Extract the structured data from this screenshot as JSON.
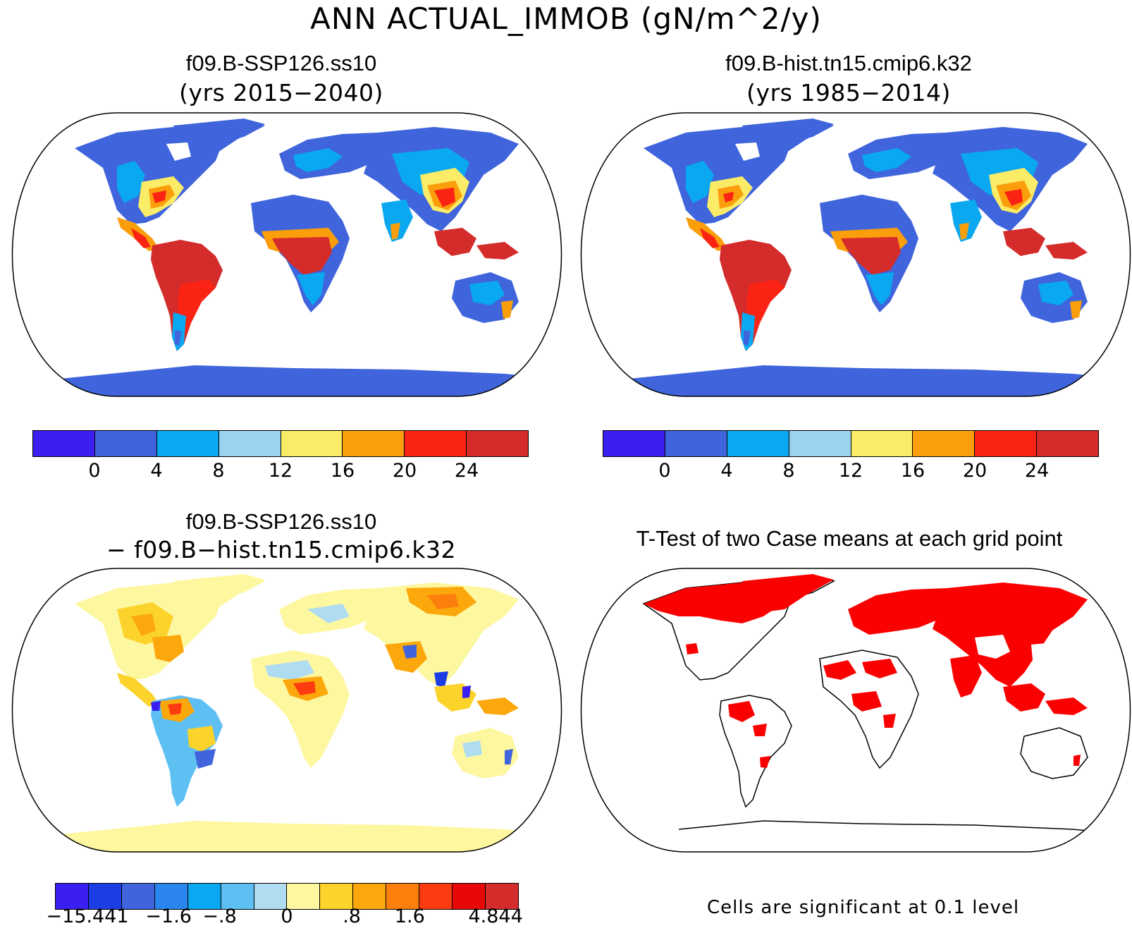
{
  "figure": {
    "title": "ANN ACTUAL_IMMOB (gN/m^2/y)"
  },
  "panels": {
    "top_left": {
      "title": "f09.B-SSP126.ss10",
      "subtitle": "(yrs 2015−2040)"
    },
    "top_right": {
      "title": "f09.B-hist.tn15.cmip6.k32",
      "subtitle": "(yrs 1985−2014)"
    },
    "bottom_left": {
      "title": "f09.B-SSP126.ss10",
      "subtitle": "− f09.B−hist.tn15.cmip6.k32"
    },
    "bottom_right": {
      "title": "T-Test of two Case means at each grid point",
      "footnote": "Cells are significant at 0.1 level"
    }
  },
  "colorbars": {
    "absolute": {
      "colors": [
        "#3b1ff0",
        "#3f64dc",
        "#0aa8f0",
        "#9dd2ee",
        "#fbec68",
        "#fb9e0c",
        "#fb2414",
        "#d42b2b"
      ],
      "ticks": [
        "0",
        "4",
        "8",
        "12",
        "16",
        "20",
        "24"
      ]
    },
    "difference": {
      "colors": [
        "#3b1ff0",
        "#1c3ce4",
        "#3f64dc",
        "#2a86ee",
        "#0aa8f0",
        "#5ec0f2",
        "#b0dcf2",
        "#fdf7a0",
        "#fcd32a",
        "#fca80c",
        "#fc7e0c",
        "#fc3c10",
        "#e80808",
        "#d42b2b"
      ],
      "ticks": [
        "−15.441",
        "−1.6",
        "−.8",
        "0",
        ".8",
        "1.6",
        "4.844"
      ]
    }
  }
}
